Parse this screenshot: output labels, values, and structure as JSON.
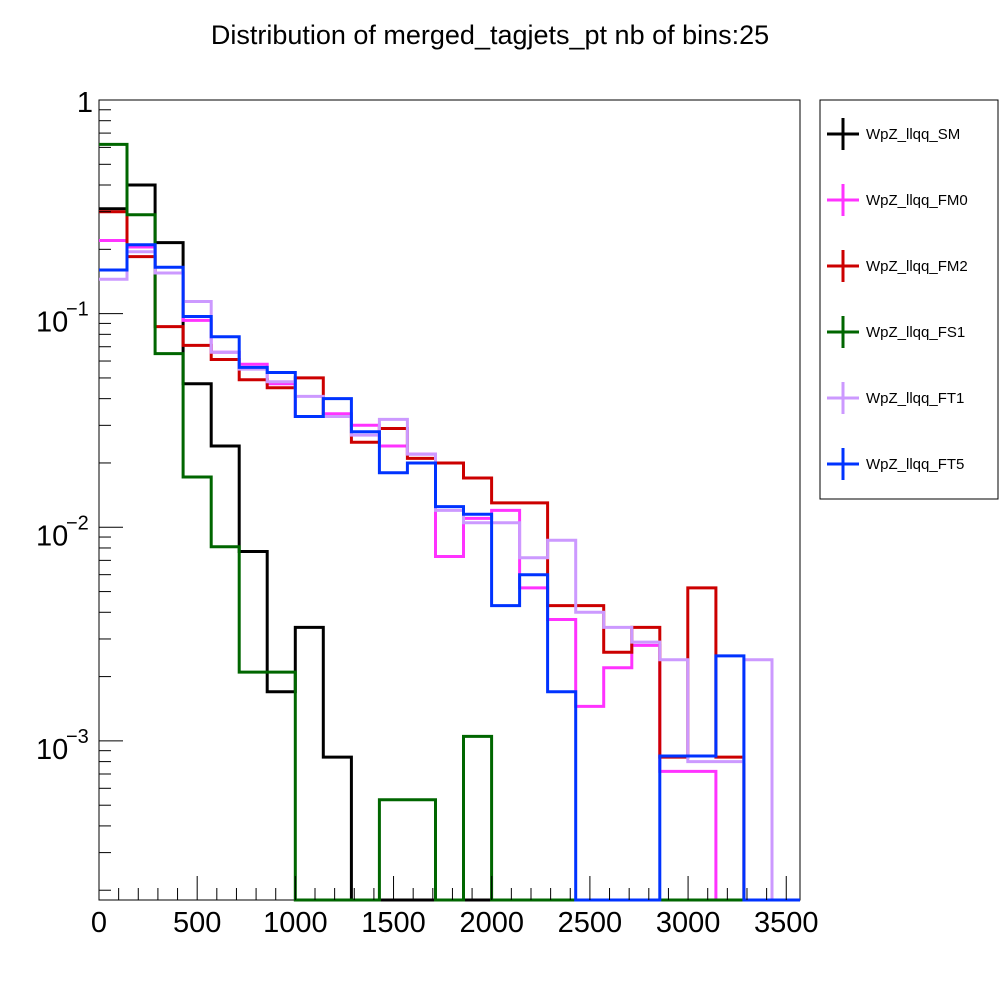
{
  "chart_data": {
    "type": "histogram",
    "title": "Distribution of merged_tagjets_pt nb of bins:25",
    "xlabel": "",
    "ylabel": "",
    "x_range": [
      0,
      3570
    ],
    "y_scale": "log",
    "y_range": [
      0.00018,
      1
    ],
    "grid": false,
    "legend_position": "right",
    "bin_edges": [
      0,
      142.8,
      285.6,
      428.4,
      571.2,
      714,
      856.8,
      999.6,
      1142.4,
      1285.2,
      1428,
      1570.8,
      1713.6,
      1856.4,
      1999.2,
      2142,
      2284.8,
      2427.6,
      2570.4,
      2713.2,
      2856,
      2998.8,
      3141.6,
      3284.4,
      3427.2,
      3570
    ],
    "x_tick_labels": [
      "0",
      "500",
      "1000",
      "1500",
      "2000",
      "2500",
      "3000",
      "3500"
    ],
    "x_tick_values": [
      0,
      500,
      1000,
      1500,
      2000,
      2500,
      3000,
      3500
    ],
    "y_tick_labels": [
      {
        "value": 1,
        "base": "1",
        "exp": ""
      },
      {
        "value": 0.1,
        "base": "10",
        "exp": "−1"
      },
      {
        "value": 0.01,
        "base": "10",
        "exp": "−2"
      },
      {
        "value": 0.001,
        "base": "10",
        "exp": "−3"
      }
    ],
    "series": [
      {
        "name": "WpZ_llqq_SM",
        "color": "#000000",
        "values": [
          0.31,
          0.4,
          0.215,
          0.047,
          0.024,
          0.0077,
          0.0017,
          0.0034,
          0.00084,
          0,
          0,
          0,
          0,
          0,
          0,
          0,
          0,
          0,
          0,
          0,
          0,
          0,
          0,
          0,
          0
        ]
      },
      {
        "name": "WpZ_llqq_FM0",
        "color": "#ff33ff",
        "values": [
          0.22,
          0.205,
          0.155,
          0.093,
          0.066,
          0.058,
          0.047,
          0.033,
          0.034,
          0.03,
          0.024,
          0.022,
          0.0073,
          0.011,
          0.012,
          0.0052,
          0.0037,
          0.00145,
          0.0022,
          0.0028,
          0.00072,
          0.00072,
          0,
          0,
          0
        ]
      },
      {
        "name": "WpZ_llqq_FM2",
        "color": "#cc0000",
        "values": [
          0.3,
          0.185,
          0.087,
          0.071,
          0.061,
          0.049,
          0.045,
          0.05,
          0.033,
          0.025,
          0.029,
          0.021,
          0.02,
          0.017,
          0.013,
          0.013,
          0.0043,
          0.0043,
          0.0026,
          0.0034,
          0.00084,
          0.0052,
          0.00084,
          0,
          0
        ]
      },
      {
        "name": "WpZ_llqq_FS1",
        "color": "#006600",
        "values": [
          0.62,
          0.29,
          0.065,
          0.0172,
          0.0081,
          0.0021,
          0.0021,
          0,
          0,
          0,
          0.00053,
          0.00053,
          0,
          0.00105,
          0,
          0,
          0,
          0,
          0,
          0,
          0,
          0,
          0,
          0,
          0
        ]
      },
      {
        "name": "WpZ_llqq_FT1",
        "color": "#cc99ff",
        "values": [
          0.145,
          0.195,
          0.155,
          0.114,
          0.066,
          0.055,
          0.048,
          0.041,
          0.033,
          0.027,
          0.032,
          0.022,
          0.012,
          0.0105,
          0.0105,
          0.0072,
          0.0087,
          0.004,
          0.0034,
          0.0029,
          0.0024,
          0.0008,
          0.0008,
          0.0024,
          0
        ]
      },
      {
        "name": "WpZ_llqq_FT5",
        "color": "#0033ff",
        "values": [
          0.16,
          0.21,
          0.165,
          0.097,
          0.078,
          0.056,
          0.053,
          0.033,
          0.04,
          0.028,
          0.018,
          0.02,
          0.0125,
          0.0115,
          0.0043,
          0.006,
          0.0017,
          0,
          0,
          0,
          0.00085,
          0.00085,
          0.0025,
          0,
          0
        ]
      }
    ]
  }
}
